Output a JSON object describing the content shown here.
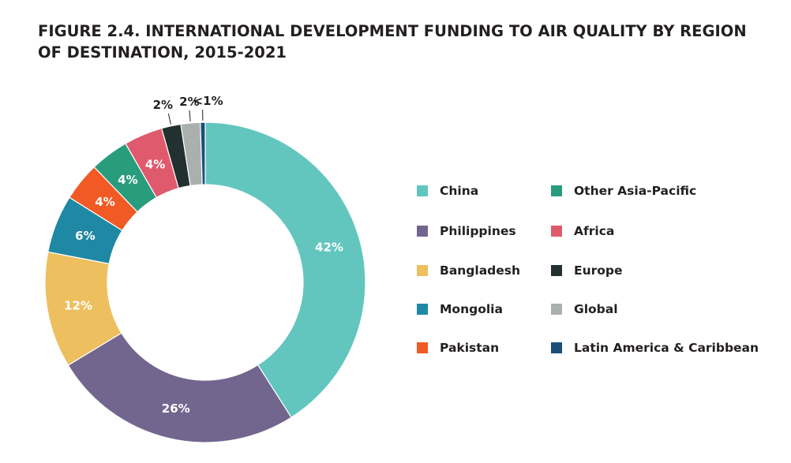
{
  "figure": {
    "title_line1": "FIGURE 2.4.  INTERNATIONAL DEVELOPMENT FUNDING TO AIR QUALITY BY REGION",
    "title_line2": "OF DESTINATION, 2015-2021"
  },
  "chart_data": {
    "type": "pie",
    "variant": "donut",
    "title": "FIGURE 2.4.  INTERNATIONAL DEVELOPMENT FUNDING TO AIR QUALITY BY REGION OF DESTINATION, 2015-2021",
    "legend_placement": "right",
    "start": "top, clockwise",
    "unit": "%",
    "slices": [
      {
        "name": "China",
        "value": 42,
        "label": "42%",
        "color": "#62c6bf"
      },
      {
        "name": "Philippines",
        "value": 26,
        "label": "26%",
        "color": "#72668f"
      },
      {
        "name": "Bangladesh",
        "value": 12,
        "label": "12%",
        "color": "#edbf5f"
      },
      {
        "name": "Mongolia",
        "value": 6,
        "label": "6%",
        "color": "#1f88a4"
      },
      {
        "name": "Pakistan",
        "value": 4,
        "label": "4%",
        "color": "#f15a24"
      },
      {
        "name": "Other Asia-Pacific",
        "value": 4,
        "label": "4%",
        "color": "#2a9c7e"
      },
      {
        "name": "Africa",
        "value": 4,
        "label": "4%",
        "color": "#e05a6e"
      },
      {
        "name": "Europe",
        "value": 2,
        "label": "2%",
        "color": "#22302f"
      },
      {
        "name": "Global",
        "value": 2,
        "label": "2%",
        "color": "#a9b0ad"
      },
      {
        "name": "Latin America & Caribbean",
        "value": 0.5,
        "label": "<1%",
        "color": "#1a4f7a"
      }
    ]
  },
  "legend": {
    "items": [
      {
        "label": "China",
        "color": "#62c6bf"
      },
      {
        "label": "Philippines",
        "color": "#72668f"
      },
      {
        "label": "Bangladesh",
        "color": "#edbf5f"
      },
      {
        "label": "Mongolia",
        "color": "#1f88a4"
      },
      {
        "label": "Pakistan",
        "color": "#f15a24"
      },
      {
        "label": "Other Asia-Pacific",
        "color": "#2a9c7e"
      },
      {
        "label": "Africa",
        "color": "#e05a6e"
      },
      {
        "label": "Europe",
        "color": "#22302f"
      },
      {
        "label": "Global",
        "color": "#a9b0ad"
      },
      {
        "label": "Latin America & Caribbean",
        "color": "#1a4f7a"
      }
    ]
  }
}
